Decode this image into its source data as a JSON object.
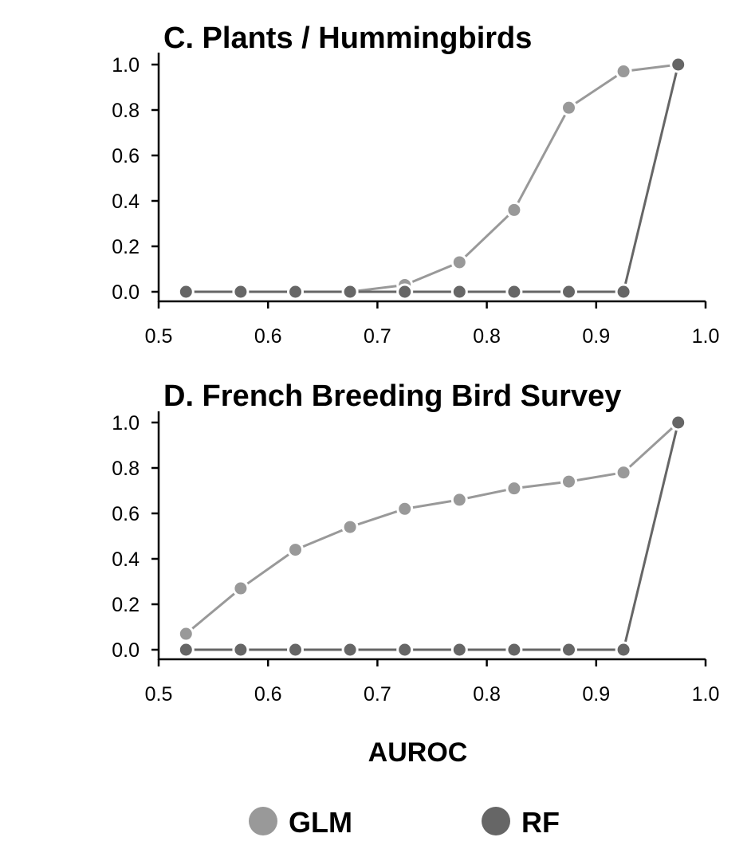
{
  "chart_data": [
    {
      "type": "line",
      "title": "C. Plants / Hummingbirds",
      "x": [
        0.525,
        0.575,
        0.625,
        0.675,
        0.725,
        0.775,
        0.825,
        0.875,
        0.925,
        0.975
      ],
      "xlim": [
        0.5,
        1.0
      ],
      "ylim": [
        0.0,
        1.0
      ],
      "xticks": [
        "0.5",
        "0.6",
        "0.7",
        "0.8",
        "0.9",
        "1.0"
      ],
      "yticks": [
        "0.0",
        "0.2",
        "0.4",
        "0.6",
        "0.8",
        "1.0"
      ],
      "grid": false,
      "series": [
        {
          "name": "GLM",
          "color": "#999999",
          "values": [
            0.0,
            0.0,
            0.0,
            0.0,
            0.03,
            0.13,
            0.36,
            0.81,
            0.97,
            1.0
          ]
        },
        {
          "name": "RF",
          "color": "#666666",
          "values": [
            0.0,
            0.0,
            0.0,
            0.0,
            0.0,
            0.0,
            0.0,
            0.0,
            0.0,
            1.0
          ]
        }
      ]
    },
    {
      "type": "line",
      "title": "D. French Breeding Bird Survey",
      "x": [
        0.525,
        0.575,
        0.625,
        0.675,
        0.725,
        0.775,
        0.825,
        0.875,
        0.925,
        0.975
      ],
      "xlim": [
        0.5,
        1.0
      ],
      "ylim": [
        0.0,
        1.0
      ],
      "xticks": [
        "0.5",
        "0.6",
        "0.7",
        "0.8",
        "0.9",
        "1.0"
      ],
      "yticks": [
        "0.0",
        "0.2",
        "0.4",
        "0.6",
        "0.8",
        "1.0"
      ],
      "xlabel": "AUROC",
      "grid": false,
      "series": [
        {
          "name": "GLM",
          "color": "#999999",
          "values": [
            0.07,
            0.27,
            0.44,
            0.54,
            0.62,
            0.66,
            0.71,
            0.74,
            0.78,
            1.0
          ]
        },
        {
          "name": "RF",
          "color": "#666666",
          "values": [
            0.0,
            0.0,
            0.0,
            0.0,
            0.0,
            0.0,
            0.0,
            0.0,
            0.0,
            1.0
          ]
        }
      ]
    }
  ],
  "legend": {
    "placement": "bottom",
    "items": [
      {
        "label": "GLM",
        "color": "#999999"
      },
      {
        "label": "RF",
        "color": "#666666"
      }
    ]
  }
}
